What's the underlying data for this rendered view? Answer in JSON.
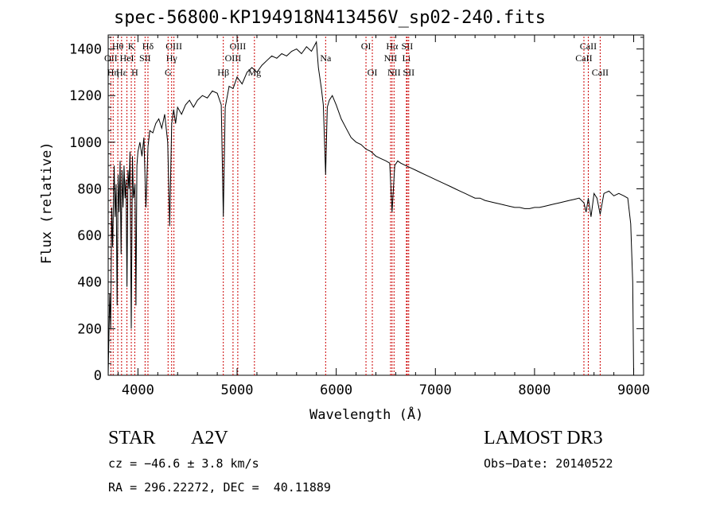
{
  "chart_data": {
    "type": "line",
    "title": "spec-56800-KP194918N413456V_sp02-240.fits",
    "xlabel": "Wavelength (Å)",
    "ylabel": "Flux (relative)",
    "xlim": [
      3700,
      9100
    ],
    "ylim": [
      0,
      1460
    ],
    "xticks": [
      4000,
      5000,
      6000,
      7000,
      8000,
      9000
    ],
    "yticks": [
      0,
      200,
      400,
      600,
      800,
      1000,
      1200,
      1400
    ],
    "series": [
      {
        "name": "flux",
        "x": [
          3700,
          3715,
          3725,
          3735,
          3745,
          3760,
          3770,
          3780,
          3790,
          3800,
          3810,
          3820,
          3830,
          3840,
          3850,
          3860,
          3870,
          3880,
          3889,
          3900,
          3910,
          3920,
          3933,
          3945,
          3955,
          3970,
          3980,
          3990,
          4000,
          4020,
          4040,
          4060,
          4080,
          4101,
          4120,
          4150,
          4180,
          4210,
          4240,
          4270,
          4300,
          4320,
          4340,
          4360,
          4380,
          4400,
          4440,
          4480,
          4520,
          4560,
          4600,
          4650,
          4700,
          4750,
          4800,
          4840,
          4861,
          4880,
          4920,
          4960,
          5000,
          5050,
          5100,
          5150,
          5200,
          5250,
          5300,
          5350,
          5400,
          5450,
          5500,
          5550,
          5600,
          5650,
          5700,
          5750,
          5800,
          5820,
          5850,
          5870,
          5893,
          5910,
          5930,
          5960,
          6000,
          6050,
          6100,
          6150,
          6200,
          6250,
          6300,
          6350,
          6400,
          6450,
          6500,
          6540,
          6563,
          6590,
          6620,
          6650,
          6700,
          6750,
          6800,
          6850,
          6900,
          6950,
          7000,
          7050,
          7100,
          7150,
          7200,
          7250,
          7300,
          7350,
          7400,
          7450,
          7500,
          7550,
          7600,
          7650,
          7700,
          7750,
          7800,
          7850,
          7900,
          7950,
          8000,
          8050,
          8100,
          8150,
          8200,
          8250,
          8300,
          8350,
          8400,
          8450,
          8498,
          8520,
          8542,
          8570,
          8600,
          8630,
          8662,
          8700,
          8750,
          8800,
          8850,
          8900,
          8940,
          8970,
          8990,
          9000
        ],
        "y": [
          0,
          350,
          200,
          720,
          550,
          900,
          680,
          820,
          300,
          860,
          700,
          920,
          520,
          880,
          720,
          900,
          760,
          840,
          380,
          880,
          800,
          960,
          200,
          940,
          760,
          820,
          300,
          900,
          960,
          1000,
          940,
          1020,
          720,
          980,
          1050,
          1040,
          1080,
          1100,
          1060,
          1120,
          1000,
          640,
          1080,
          1140,
          1080,
          1150,
          1120,
          1160,
          1180,
          1150,
          1180,
          1200,
          1190,
          1220,
          1210,
          1160,
          680,
          1150,
          1240,
          1230,
          1280,
          1250,
          1300,
          1320,
          1300,
          1330,
          1350,
          1370,
          1360,
          1380,
          1370,
          1390,
          1400,
          1380,
          1410,
          1390,
          1430,
          1320,
          1230,
          1160,
          860,
          1150,
          1180,
          1200,
          1160,
          1100,
          1060,
          1020,
          1000,
          990,
          970,
          960,
          940,
          930,
          920,
          910,
          700,
          900,
          920,
          910,
          900,
          890,
          880,
          870,
          860,
          850,
          840,
          830,
          820,
          810,
          800,
          790,
          780,
          770,
          760,
          760,
          750,
          745,
          740,
          735,
          730,
          725,
          720,
          720,
          715,
          715,
          720,
          720,
          725,
          730,
          735,
          740,
          745,
          750,
          755,
          760,
          740,
          700,
          760,
          680,
          780,
          760,
          690,
          780,
          790,
          770,
          780,
          770,
          760,
          650,
          400,
          0
        ]
      }
    ],
    "lines": [
      {
        "label": "Hθ",
        "x": 3797,
        "row": 1
      },
      {
        "label": "OII",
        "x": 3727,
        "row": 2
      },
      {
        "label": "Hε",
        "x": 3835,
        "row": 3
      },
      {
        "label": "K",
        "x": 3933,
        "row": 1
      },
      {
        "label": "HeI",
        "x": 3889,
        "row": 2
      },
      {
        "label": "Hη",
        "x": 3750,
        "row": 3
      },
      {
        "label": "H",
        "x": 3968,
        "row": 3
      },
      {
        "label": "Hδ",
        "x": 4101,
        "row": 1
      },
      {
        "label": "SII",
        "x": 4072,
        "row": 2
      },
      {
        "label": "OIII",
        "x": 4363,
        "row": 1
      },
      {
        "label": "Hγ",
        "x": 4340,
        "row": 2
      },
      {
        "label": "G",
        "x": 4304,
        "row": 3
      },
      {
        "label": "Hβ",
        "x": 4861,
        "row": 3
      },
      {
        "label": "OIII",
        "x": 5007,
        "row": 1
      },
      {
        "label": "OIII",
        "x": 4959,
        "row": 2
      },
      {
        "label": "Mg",
        "x": 5175,
        "row": 3
      },
      {
        "label": "Na",
        "x": 5893,
        "row": 2
      },
      {
        "label": "OI",
        "x": 6300,
        "row": 1
      },
      {
        "label": "OI",
        "x": 6364,
        "row": 3
      },
      {
        "label": "Hα",
        "x": 6563,
        "row": 1
      },
      {
        "label": "NII",
        "x": 6548,
        "row": 2
      },
      {
        "label": "NII",
        "x": 6583,
        "row": 3
      },
      {
        "label": "SII",
        "x": 6716,
        "row": 1
      },
      {
        "label": "Li",
        "x": 6708,
        "row": 2
      },
      {
        "label": "SII",
        "x": 6731,
        "row": 3
      },
      {
        "label": "CaII",
        "x": 8542,
        "row": 1
      },
      {
        "label": "CaII",
        "x": 8498,
        "row": 2
      },
      {
        "label": "CaII",
        "x": 8662,
        "row": 3
      }
    ]
  },
  "info": {
    "object_class": "STAR",
    "subclass": "A2V",
    "survey": "LAMOST DR3",
    "cz": "cz = −46.6 ± 3.8 km/s",
    "obs_date": "Obs−Date: 20140522",
    "coords": "RA = 296.22272, DEC =  40.11889"
  },
  "colors": {
    "spectrum": "#000000",
    "line_marker": "#cc0000",
    "axes": "#000000"
  }
}
